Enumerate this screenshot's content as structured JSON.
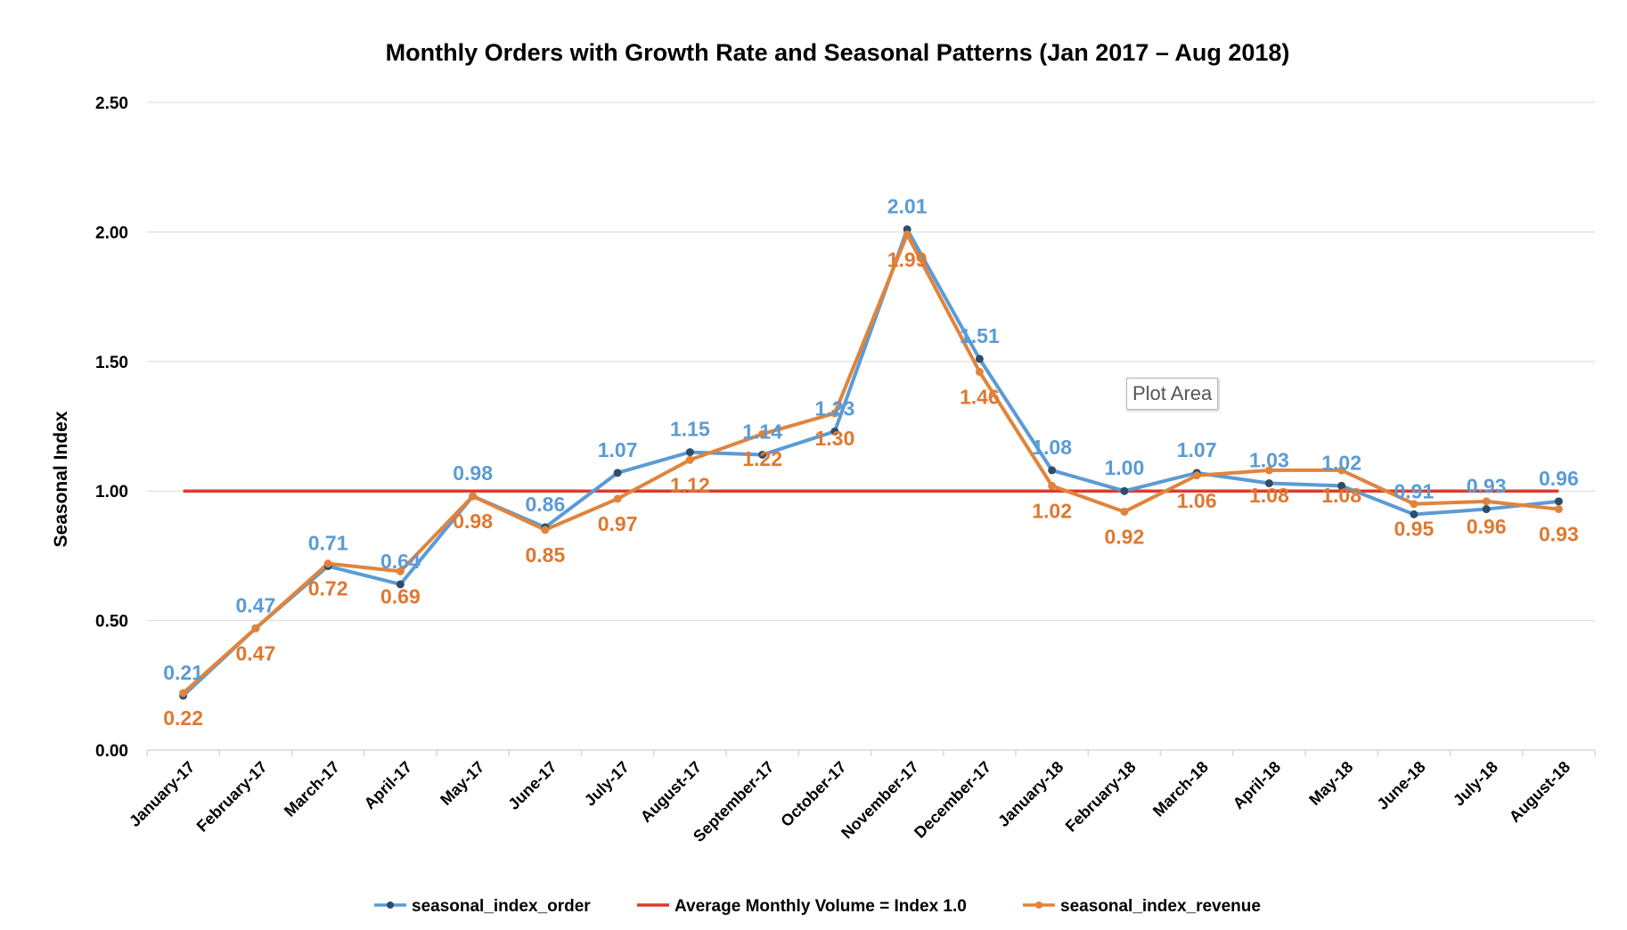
{
  "chart_data": {
    "type": "line",
    "title": "Monthly Orders with Growth Rate and Seasonal Patterns  (Jan 2017 – Aug 2018)",
    "xlabel": "",
    "ylabel": "Seasonal Index",
    "ylim": [
      0,
      2.5
    ],
    "ytick_labels": [
      "0.00",
      "0.50",
      "1.00",
      "1.50",
      "2.00",
      "2.50"
    ],
    "grid": "horizontal",
    "legend_position": "bottom",
    "categories": [
      "January-17",
      "February-17",
      "March-17",
      "April-17",
      "May-17",
      "June-17",
      "July-17",
      "August-17",
      "September-17",
      "October-17",
      "November-17",
      "December-17",
      "January-18",
      "February-18",
      "March-18",
      "April-18",
      "May-18",
      "June-18",
      "July-18",
      "August-18"
    ],
    "series": [
      {
        "name": "seasonal_index_order",
        "color": "#5B9BD5",
        "label_color": "#5B9BD5",
        "values": [
          0.21,
          0.47,
          0.71,
          0.64,
          0.98,
          0.86,
          1.07,
          1.15,
          1.14,
          1.23,
          2.01,
          1.51,
          1.08,
          1.0,
          1.07,
          1.03,
          1.02,
          0.91,
          0.93,
          0.96
        ],
        "labels": [
          "0.21",
          "0.47",
          "0.71",
          "0.64",
          "0.98",
          "0.86",
          "1.07",
          "1.15",
          "1.14",
          "1.23",
          "2.01",
          "1.51",
          "1.08",
          "1.00",
          "1.07",
          "1.03",
          "1.02",
          "0.91",
          "0.93",
          "0.96"
        ]
      },
      {
        "name": "Average Monthly Volume = Index 1.0",
        "color": "#E0392B",
        "values": [
          1,
          1,
          1,
          1,
          1,
          1,
          1,
          1,
          1,
          1,
          1,
          1,
          1,
          1,
          1,
          1,
          1,
          1,
          1,
          1
        ]
      },
      {
        "name": "seasonal_index_revenue",
        "color": "#E0843C",
        "label_color": "#E0782F",
        "values": [
          0.22,
          0.47,
          0.72,
          0.69,
          0.98,
          0.85,
          0.97,
          1.12,
          1.22,
          1.3,
          1.99,
          1.46,
          1.02,
          0.92,
          1.06,
          1.08,
          1.08,
          0.95,
          0.96,
          0.93
        ],
        "labels": [
          "0.22",
          "0.47",
          "0.72",
          "0.69",
          "0.98",
          "0.85",
          "0.97",
          "1.12",
          "1.22",
          "1.30",
          "1.99",
          "1.46",
          "1.02",
          "0.92",
          "1.06",
          "1.08",
          "1.08",
          "0.95",
          "0.96",
          "0.93"
        ]
      }
    ]
  },
  "tooltip": {
    "text": "Plot Area"
  }
}
